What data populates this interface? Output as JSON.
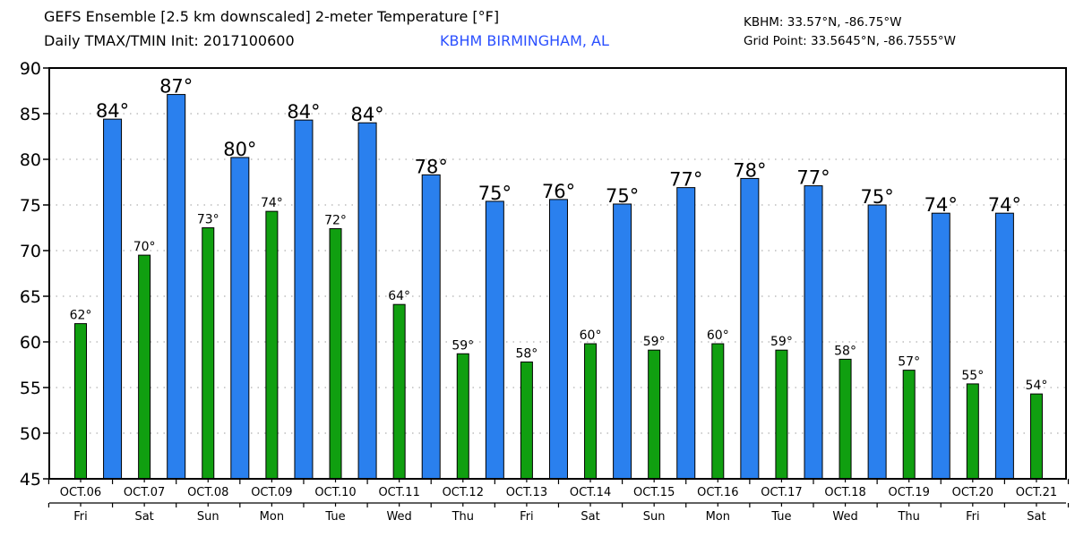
{
  "header": {
    "title_line1": "GEFS Ensemble [2.5 km downscaled] 2-meter Temperature [°F]",
    "title_line2": "Daily TMAX/TMIN Init: 2017100600",
    "station_name": "KBHM BIRMINGHAM, AL",
    "station_coords": "KBHM: 33.57°N, -86.75°W",
    "grid_coords": "Grid Point: 33.5645°N, -86.7555°W"
  },
  "colors": {
    "tmax": "#2a80ee",
    "tmin": "#109f10",
    "station_text": "#2a4fff",
    "grid": "#b0b0b0"
  },
  "chart_data": {
    "type": "bar",
    "title": "GEFS Ensemble [2.5 km downscaled] 2-meter Temperature [°F]",
    "subtitle": "Daily TMAX/TMIN Init: 2017100600",
    "xlabel": "",
    "ylabel": "",
    "ylim": [
      45,
      90
    ],
    "yticks": [
      45,
      50,
      55,
      60,
      65,
      70,
      75,
      80,
      85,
      90
    ],
    "grid": true,
    "categories": [
      "OCT.06",
      "OCT.07",
      "OCT.08",
      "OCT.09",
      "OCT.10",
      "OCT.11",
      "OCT.12",
      "OCT.13",
      "OCT.14",
      "OCT.15",
      "OCT.16",
      "OCT.17",
      "OCT.18",
      "OCT.19",
      "OCT.20",
      "OCT.21"
    ],
    "weekdays": [
      "Fri",
      "Sat",
      "Sun",
      "Mon",
      "Tue",
      "Wed",
      "Thu",
      "Fri",
      "Sat",
      "Sun",
      "Mon",
      "Tue",
      "Wed",
      "Thu",
      "Fri",
      "Sat"
    ],
    "series": [
      {
        "name": "TMIN",
        "placement": "on-day",
        "values": [
          62.0,
          69.5,
          72.5,
          74.3,
          72.4,
          64.1,
          58.7,
          57.8,
          59.8,
          59.1,
          59.8,
          59.1,
          58.1,
          56.9,
          55.4,
          54.3
        ],
        "labels": [
          "62°",
          "70°",
          "73°",
          "74°",
          "72°",
          "64°",
          "59°",
          "58°",
          "60°",
          "59°",
          "60°",
          "59°",
          "58°",
          "57°",
          "55°",
          "54°"
        ]
      },
      {
        "name": "TMAX",
        "placement": "after-day",
        "values": [
          84.4,
          87.1,
          80.2,
          84.3,
          84.0,
          78.3,
          75.4,
          75.6,
          75.1,
          76.9,
          77.9,
          77.1,
          75.0,
          74.1,
          74.1
        ],
        "labels": [
          "84°",
          "87°",
          "80°",
          "84°",
          "84°",
          "78°",
          "75°",
          "76°",
          "75°",
          "77°",
          "78°",
          "77°",
          "75°",
          "74°",
          "74°"
        ]
      }
    ]
  }
}
